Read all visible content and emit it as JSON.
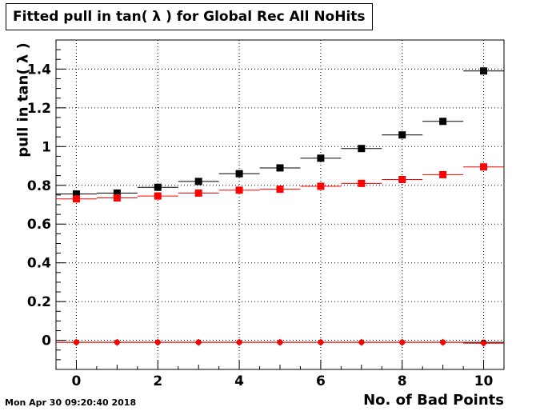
{
  "chart_data": {
    "type": "scatter",
    "title": "Fitted pull in tan( λ ) for Global Rec All NoHits",
    "xlabel": "No. of Bad Points",
    "ylabel": "pull in tan( λ )",
    "xlim": [
      -0.5,
      10.5
    ],
    "ylim": [
      -0.15,
      1.55
    ],
    "grid": true,
    "x_ticks": [
      0,
      2,
      4,
      6,
      8,
      10
    ],
    "y_ticks": [
      0,
      0.2,
      0.4,
      0.6,
      0.8,
      1,
      1.2,
      1.4
    ],
    "x_tick_labels": [
      "0",
      "2",
      "4",
      "6",
      "8",
      "10"
    ],
    "y_tick_labels": [
      "0",
      "0.2",
      "0.4",
      "0.6",
      "0.8",
      "1",
      "1.2",
      "1.4"
    ],
    "x": [
      0,
      1,
      2,
      3,
      4,
      5,
      6,
      7,
      8,
      9,
      10
    ],
    "series": [
      {
        "color": "#000000",
        "marker": "square",
        "values": [
          0.755,
          0.76,
          0.79,
          0.82,
          0.86,
          0.89,
          0.94,
          0.99,
          1.06,
          1.13,
          1.39
        ]
      },
      {
        "color": "#ff0000",
        "marker": "square",
        "values": [
          0.73,
          0.735,
          0.745,
          0.76,
          0.775,
          0.78,
          0.795,
          0.81,
          0.83,
          0.855,
          0.895
        ]
      },
      {
        "color": "#000000",
        "marker": "circle",
        "values": [
          -0.01,
          -0.01,
          -0.01,
          -0.01,
          -0.01,
          -0.01,
          -0.01,
          -0.01,
          -0.01,
          -0.01,
          -0.01
        ]
      },
      {
        "color": "#ff0000",
        "marker": "diamond",
        "values": [
          -0.01,
          -0.01,
          -0.01,
          -0.01,
          -0.01,
          -0.01,
          -0.01,
          -0.01,
          -0.01,
          -0.01,
          -0.015
        ]
      }
    ]
  },
  "timestamp": "Mon Apr 30 09:20:40 2018"
}
